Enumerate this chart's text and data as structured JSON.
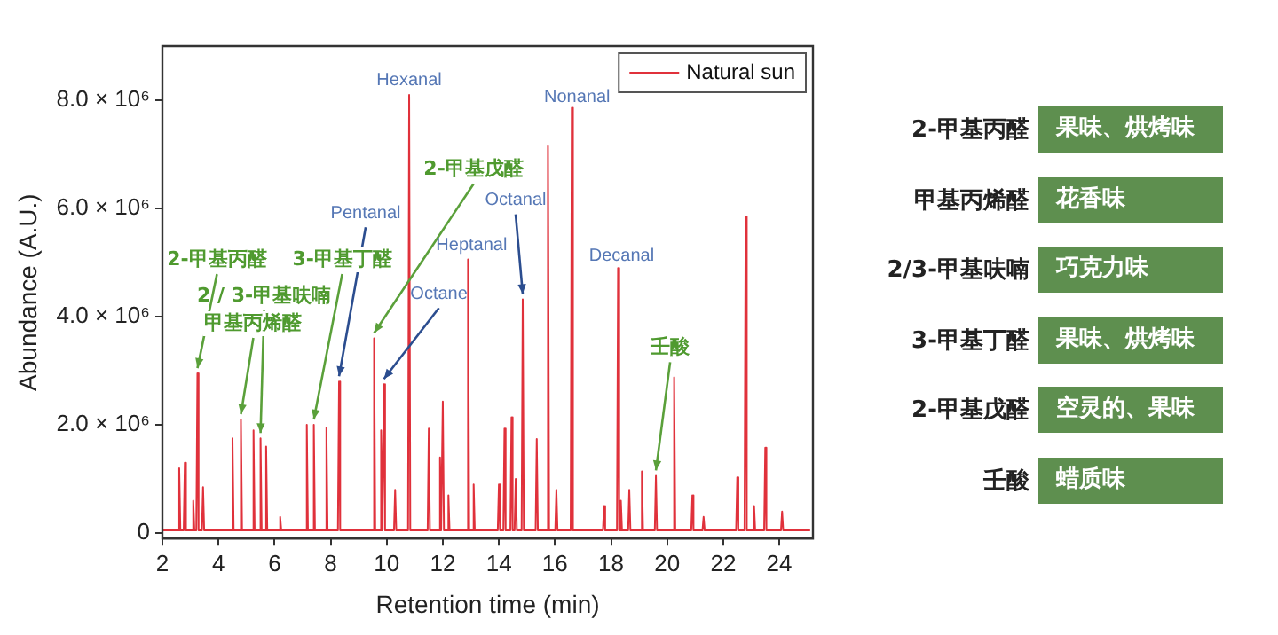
{
  "chart_data": [
    {
      "type": "line",
      "xlabel": "Retention time (min)",
      "ylabel": "Abundance (A.U.)",
      "xlim": [
        2,
        25.2
      ],
      "xticks": [
        2,
        4,
        6,
        8,
        10,
        12,
        14,
        16,
        18,
        20,
        22,
        24
      ],
      "ylim": [
        -100000,
        9000000
      ],
      "yticks": [
        0,
        {
          "value": 2000000,
          "label": "2.0 × 10⁶"
        },
        {
          "value": 4000000,
          "label": "4.0 × 10⁶"
        },
        {
          "value": 6000000,
          "label": "6.0 × 10⁶"
        },
        {
          "value": 8000000,
          "label": "8.0 × 10⁶"
        }
      ],
      "grid": false,
      "legend": "top right",
      "marker": "none",
      "line_style": "solid",
      "series": [
        {
          "name": "Natural sun",
          "color": "#e0313b",
          "x": [
            2,
            2.56,
            2.6,
            2.64,
            2.76,
            2.8,
            2.84,
            3.06,
            3.1,
            3.14,
            3.21,
            3.25,
            3.29,
            3.41,
            3.45,
            3.49,
            4.46,
            4.5,
            4.54,
            4.76,
            4.8,
            4.84,
            5.21,
            5.25,
            5.29,
            5.46,
            5.5,
            5.54,
            5.66,
            5.7,
            5.74,
            6.16,
            6.2,
            6.24,
            7.11,
            7.15,
            7.19,
            7.36,
            7.4,
            7.44,
            7.81,
            7.85,
            7.89,
            8.26,
            8.3,
            8.34,
            9.51,
            9.55,
            9.59,
            9.76,
            9.8,
            9.84,
            9.86,
            9.9,
            9.94,
            10.26,
            10.3,
            10.34,
            10.76,
            10.8,
            10.84,
            11.46,
            11.5,
            11.54,
            11.86,
            11.9,
            11.94,
            11.96,
            12,
            12.04,
            12.16,
            12.2,
            12.24,
            12.86,
            12.9,
            12.94,
            13.06,
            13.1,
            13.14,
            13.96,
            14,
            14.04,
            14.16,
            14.2,
            14.24,
            14.41,
            14.45,
            14.49,
            14.56,
            14.6,
            14.64,
            14.81,
            14.85,
            14.89,
            15.31,
            15.35,
            15.39,
            15.71,
            15.75,
            15.79,
            16.01,
            16.05,
            16.09,
            16.56,
            16.6,
            16.64,
            17.71,
            17.75,
            17.79,
            18.21,
            18.25,
            18.29,
            18.31,
            18.35,
            18.39,
            18.61,
            18.65,
            18.69,
            19.06,
            19.1,
            19.14,
            19.56,
            19.6,
            19.64,
            20.21,
            20.25,
            20.29,
            20.86,
            20.9,
            20.94,
            21.26,
            21.3,
            21.34,
            22.46,
            22.5,
            22.54,
            22.76,
            22.8,
            22.84,
            23.06,
            23.1,
            23.14,
            23.46,
            23.5,
            23.54,
            24.06,
            24.1,
            24.14,
            25.1
          ],
          "values": [
            50000,
            50000,
            1200000,
            50000,
            50000,
            1300000,
            50000,
            50000,
            600000,
            50000,
            50000,
            2950000,
            50000,
            50000,
            850000,
            50000,
            50000,
            1750000,
            50000,
            50000,
            2100000,
            50000,
            50000,
            1900000,
            50000,
            50000,
            1750000,
            50000,
            50000,
            1600000,
            50000,
            50000,
            300000,
            50000,
            50000,
            2000000,
            50000,
            50000,
            2000000,
            50000,
            50000,
            1950000,
            50000,
            50000,
            2800000,
            50000,
            50000,
            3600000,
            50000,
            50000,
            1900000,
            50000,
            50000,
            2750000,
            50000,
            50000,
            800000,
            50000,
            50000,
            8100000,
            50000,
            50000,
            1930000,
            50000,
            50000,
            1400000,
            50000,
            50000,
            2430000,
            50000,
            50000,
            700000,
            50000,
            50000,
            5060000,
            50000,
            50000,
            900000,
            50000,
            50000,
            900000,
            50000,
            50000,
            1930000,
            50000,
            50000,
            2140000,
            50000,
            50000,
            1000000,
            50000,
            50000,
            4320000,
            50000,
            50000,
            1740000,
            50000,
            50000,
            7150000,
            50000,
            50000,
            800000,
            50000,
            50000,
            7860000,
            50000,
            50000,
            500000,
            50000,
            50000,
            4900000,
            50000,
            50000,
            600000,
            50000,
            50000,
            800000,
            50000,
            50000,
            1140000,
            50000,
            50000,
            1060000,
            50000,
            50000,
            2880000,
            50000,
            50000,
            700000,
            50000,
            50000,
            300000,
            50000,
            50000,
            1030000,
            50000,
            50000,
            5850000,
            50000,
            50000,
            500000,
            50000,
            50000,
            1580000,
            50000,
            50000,
            400000,
            50000,
            50000
          ]
        }
      ],
      "annotations": [
        {
          "text": "2-甲基丙醛",
          "x": 3.25,
          "y": 2950000
        },
        {
          "text": "甲基丙烯醛",
          "x": 4.8,
          "y": 2100000
        },
        {
          "text": "2 / 3-甲基呋喃",
          "x": 5.5,
          "y": 1750000
        },
        {
          "text": "3-甲基丁醛",
          "x": 7.4,
          "y": 2000000
        },
        {
          "text": "Pentanal",
          "x": 8.3,
          "y": 2800000
        },
        {
          "text": "2-甲基戊醛",
          "x": 9.55,
          "y": 3600000
        },
        {
          "text": "Octane",
          "x": 9.9,
          "y": 2750000
        },
        {
          "text": "Hexanal",
          "x": 10.8,
          "y": 8100000
        },
        {
          "text": "Heptanal",
          "x": 12.9,
          "y": 5060000
        },
        {
          "text": "Octanal",
          "x": 14.85,
          "y": 4320000
        },
        {
          "text": "Nonanal",
          "x": 16.6,
          "y": 7860000
        },
        {
          "text": "Decanal",
          "x": 18.25,
          "y": 4900000
        },
        {
          "text": "壬酸",
          "x": 19.6,
          "y": 1060000
        }
      ]
    },
    {
      "type": "other",
      "annotations": [
        "2-甲基丙醛",
        "果味、烘烤味",
        "甲基丙烯醛",
        "花香味",
        "2/3-甲基呋喃",
        "巧克力味",
        "3-甲基丁醛",
        "果味、烘烤味",
        "2-甲基戊醛",
        "空灵的、果味",
        "壬酸",
        "蜡质味"
      ]
    }
  ]
}
